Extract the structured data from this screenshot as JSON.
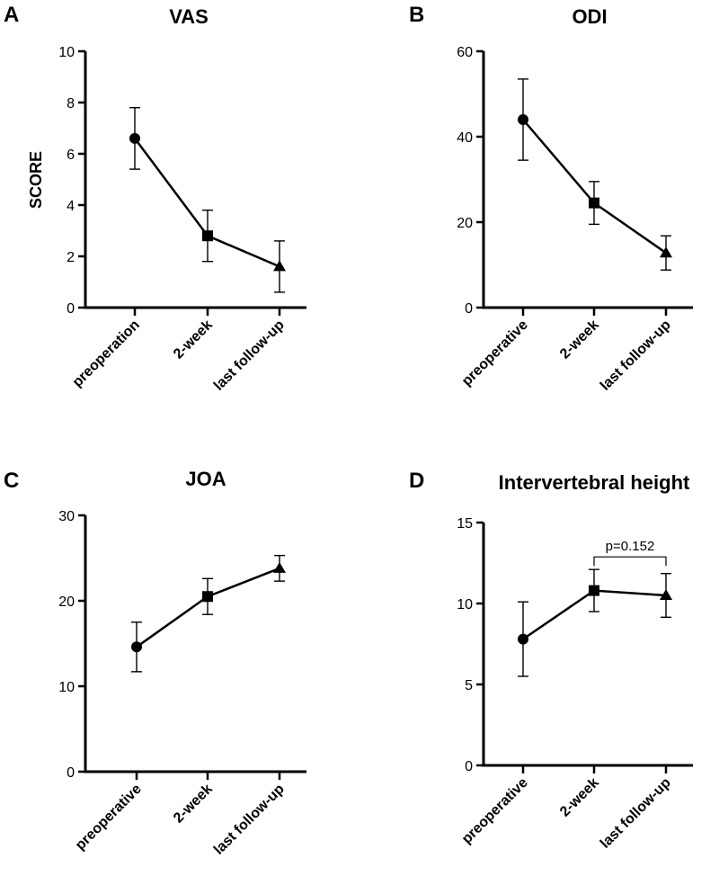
{
  "chart_data": [
    {
      "panel": "A",
      "type": "line",
      "title": "VAS",
      "ylabel": "SCORE",
      "categories": [
        "preoperation",
        "2-week",
        "last follow-up"
      ],
      "values": [
        6.6,
        2.8,
        1.6
      ],
      "errors": [
        1.2,
        1.0,
        1.0
      ],
      "markers": [
        "circle",
        "square",
        "triangle"
      ],
      "ylim": [
        0,
        10
      ],
      "yticks": [
        0,
        2,
        4,
        6,
        8,
        10
      ]
    },
    {
      "panel": "B",
      "type": "line",
      "title": "ODI",
      "ylabel": "",
      "categories": [
        "preoperative",
        "2-week",
        "last follow-up"
      ],
      "values": [
        44,
        24.5,
        12.8
      ],
      "errors": [
        9.5,
        5,
        4
      ],
      "markers": [
        "circle",
        "square",
        "triangle"
      ],
      "ylim": [
        0,
        60
      ],
      "yticks": [
        0,
        20,
        40,
        60
      ]
    },
    {
      "panel": "C",
      "type": "line",
      "title": "JOA",
      "ylabel": "",
      "categories": [
        "preoperative",
        "2-week",
        "last follow-up"
      ],
      "values": [
        14.6,
        20.5,
        23.8
      ],
      "errors": [
        2.9,
        2.1,
        1.5
      ],
      "markers": [
        "circle",
        "square",
        "triangle"
      ],
      "ylim": [
        0,
        30
      ],
      "yticks": [
        0,
        10,
        20,
        30
      ]
    },
    {
      "panel": "D",
      "type": "line",
      "title": "Intervertebral height",
      "ylabel": "",
      "categories": [
        "preoperative",
        "2-week",
        "last follow-up"
      ],
      "values": [
        7.8,
        10.8,
        10.5
      ],
      "errors": [
        2.3,
        1.3,
        1.35
      ],
      "markers": [
        "circle",
        "square",
        "triangle"
      ],
      "ylim": [
        0,
        15
      ],
      "yticks": [
        0,
        5,
        10,
        15
      ],
      "annotation": {
        "text": "p=0.152",
        "between": [
          1,
          2
        ]
      }
    }
  ]
}
